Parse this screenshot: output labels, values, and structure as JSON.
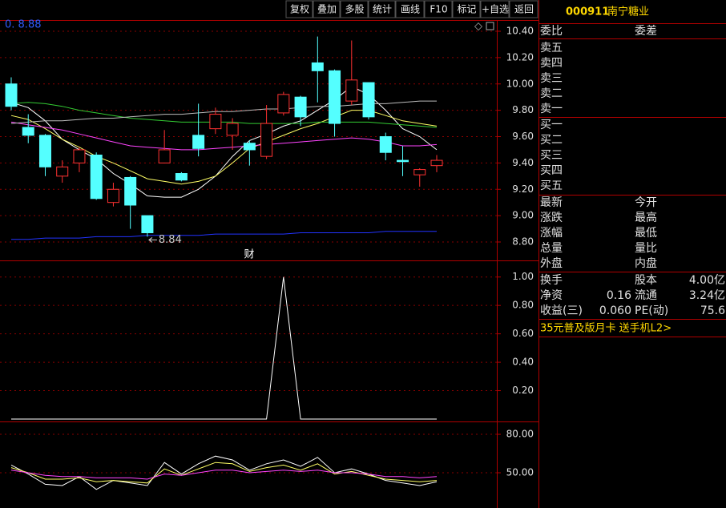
{
  "toolbar": [
    "复权",
    "叠加",
    "多股",
    "统计",
    "画线",
    "F10",
    "标记",
    "+自选",
    "返回"
  ],
  "chart_data": [
    {
      "type": "candlestick",
      "ma_label": "0. 8.88",
      "open": [
        10.0,
        9.67,
        9.61,
        9.3,
        9.4,
        9.46,
        9.1,
        9.29,
        9.0,
        9.4,
        9.32,
        9.61,
        9.66,
        9.61,
        9.55,
        9.45,
        9.78,
        9.9,
        10.16,
        10.1,
        9.87,
        10.01,
        9.6,
        9.42,
        9.31,
        9.38
      ],
      "high": [
        10.05,
        9.77,
        9.62,
        9.42,
        9.52,
        9.48,
        9.25,
        9.3,
        9.0,
        9.65,
        9.33,
        9.85,
        9.82,
        9.74,
        9.57,
        9.84,
        9.94,
        9.91,
        10.36,
        10.11,
        10.33,
        10.01,
        9.63,
        9.53,
        9.36,
        9.46
      ],
      "low": [
        9.8,
        9.55,
        9.3,
        9.25,
        9.33,
        9.12,
        9.07,
        8.9,
        8.84,
        9.4,
        9.26,
        9.45,
        9.62,
        9.5,
        9.38,
        9.43,
        9.76,
        9.68,
        9.86,
        9.6,
        9.84,
        9.73,
        9.42,
        9.3,
        9.22,
        9.33
      ],
      "close": [
        9.83,
        9.61,
        9.37,
        9.37,
        9.5,
        9.13,
        9.2,
        9.08,
        8.87,
        9.5,
        9.27,
        9.51,
        9.77,
        9.7,
        9.5,
        9.7,
        9.92,
        9.75,
        10.1,
        9.7,
        10.03,
        9.75,
        9.48,
        9.41,
        9.35,
        9.42
      ],
      "up_color": "#ff3232",
      "down_color": "#54ffff",
      "series": [
        {
          "color": "#ffffff",
          "values": [
            9.86,
            9.82,
            9.72,
            9.58,
            9.5,
            9.43,
            9.32,
            9.24,
            9.15,
            9.14,
            9.14,
            9.2,
            9.3,
            9.45,
            9.57,
            9.62,
            9.68,
            9.72,
            9.8,
            9.88,
            9.98,
            9.92,
            9.8,
            9.66,
            9.6,
            9.5
          ]
        },
        {
          "color": "#ffff66",
          "values": [
            9.76,
            9.73,
            9.66,
            9.58,
            9.52,
            9.45,
            9.4,
            9.34,
            9.28,
            9.26,
            9.24,
            9.26,
            9.3,
            9.4,
            9.51,
            9.56,
            9.61,
            9.66,
            9.7,
            9.75,
            9.8,
            9.8,
            9.76,
            9.72,
            9.7,
            9.68
          ]
        },
        {
          "color": "#ff44ff",
          "values": [
            9.71,
            9.69,
            9.67,
            9.65,
            9.62,
            9.59,
            9.56,
            9.53,
            9.52,
            9.51,
            9.5,
            9.5,
            9.51,
            9.52,
            9.53,
            9.54,
            9.55,
            9.56,
            9.57,
            9.58,
            9.59,
            9.58,
            9.56,
            9.53,
            9.53,
            9.54
          ]
        },
        {
          "color": "#33cc33",
          "values": [
            9.85,
            9.86,
            9.85,
            9.83,
            9.8,
            9.78,
            9.76,
            9.74,
            9.73,
            9.72,
            9.71,
            9.71,
            9.71,
            9.71,
            9.7,
            9.7,
            9.7,
            9.7,
            9.71,
            9.71,
            9.71,
            9.71,
            9.7,
            9.69,
            9.68,
            9.67
          ]
        },
        {
          "color": "#bbbbbb",
          "values": [
            9.7,
            9.71,
            9.72,
            9.72,
            9.73,
            9.74,
            9.74,
            9.75,
            9.76,
            9.77,
            9.77,
            9.78,
            9.79,
            9.79,
            9.8,
            9.81,
            9.81,
            9.82,
            9.83,
            9.83,
            9.84,
            9.85,
            9.85,
            9.86,
            9.87,
            9.87
          ]
        },
        {
          "color": "#2233ff",
          "values": [
            8.82,
            8.82,
            8.83,
            8.83,
            8.83,
            8.84,
            8.84,
            8.84,
            8.85,
            8.85,
            8.85,
            8.85,
            8.86,
            8.86,
            8.86,
            8.86,
            8.86,
            8.87,
            8.87,
            8.87,
            8.87,
            8.87,
            8.88,
            8.88,
            8.88,
            8.88
          ]
        }
      ],
      "low_marker": 8.84,
      "event_mark": "财",
      "ylim": [
        8.72,
        10.48
      ],
      "yticks": [
        {
          "value": 8.8,
          "label": "8.80"
        },
        {
          "value": 9.0,
          "label": "9.00"
        },
        {
          "value": 9.2,
          "label": "9.20"
        },
        {
          "value": 9.4,
          "label": "9.40"
        },
        {
          "value": 9.6,
          "label": "9.60"
        },
        {
          "value": 9.8,
          "label": "9.80"
        },
        {
          "value": 10.0,
          "label": "10.00"
        },
        {
          "value": 10.2,
          "label": "10.20"
        },
        {
          "value": 10.4,
          "label": "10.40"
        }
      ]
    },
    {
      "type": "line",
      "series": [
        {
          "color": "#ffffff",
          "values": [
            0,
            0,
            0,
            0,
            0,
            0,
            0,
            0,
            0,
            0,
            0,
            0,
            0,
            0,
            0,
            0,
            1.0,
            0,
            0,
            0,
            0,
            0,
            0,
            0,
            0,
            0
          ]
        }
      ],
      "ylim": [
        0,
        1.1
      ],
      "yticks": [
        {
          "value": 0.2,
          "label": "0.20"
        },
        {
          "value": 0.4,
          "label": "0.40"
        },
        {
          "value": 0.6,
          "label": "0.60"
        },
        {
          "value": 0.8,
          "label": "0.80"
        },
        {
          "value": 1.0,
          "label": "1.00"
        }
      ]
    },
    {
      "type": "line",
      "series": [
        {
          "color": "#ffffff",
          "values": [
            56,
            49,
            41,
            40,
            47,
            37,
            44,
            42,
            40,
            58,
            49,
            57,
            63,
            60,
            52,
            57,
            60,
            55,
            62,
            50,
            53,
            49,
            44,
            42,
            40,
            43
          ]
        },
        {
          "color": "#ffff66",
          "values": [
            54,
            50,
            45,
            45,
            46,
            43,
            44,
            43,
            42,
            53,
            48,
            53,
            58,
            57,
            51,
            54,
            56,
            52,
            57,
            49,
            51,
            48,
            45,
            44,
            43,
            44
          ]
        },
        {
          "color": "#ff44ff",
          "values": [
            52,
            50,
            48,
            47,
            47,
            46,
            46,
            46,
            45,
            49,
            48,
            50,
            52,
            52,
            50,
            51,
            52,
            51,
            52,
            50,
            50,
            49,
            47,
            47,
            46,
            47
          ]
        }
      ],
      "ylim": [
        22.5,
        89.4
      ],
      "yticks": [
        {
          "value": 50,
          "label": "50.00"
        },
        {
          "value": 80,
          "label": "80.00"
        }
      ]
    }
  ],
  "quote_panel": {
    "code": "000911",
    "name": "南宁糖业",
    "header": [
      "委比",
      "委差"
    ],
    "sell": [
      "卖五",
      "卖四",
      "卖三",
      "卖二",
      "卖一"
    ],
    "buy": [
      "买一",
      "买二",
      "买三",
      "买四",
      "买五"
    ],
    "stats": [
      [
        "最新",
        "今开"
      ],
      [
        "涨跌",
        "最高"
      ],
      [
        "涨幅",
        "最低"
      ],
      [
        "总量",
        "量比"
      ],
      [
        "外盘",
        "内盘"
      ]
    ],
    "fund": [
      [
        "换手",
        "",
        "股本",
        "4.00亿"
      ],
      [
        "净资",
        "0.16",
        "流通",
        "3.24亿"
      ],
      [
        "收益(三)",
        "0.060",
        "PE(动)",
        "75.6"
      ]
    ],
    "ad": "35元普及版月卡 送手机L2>"
  }
}
